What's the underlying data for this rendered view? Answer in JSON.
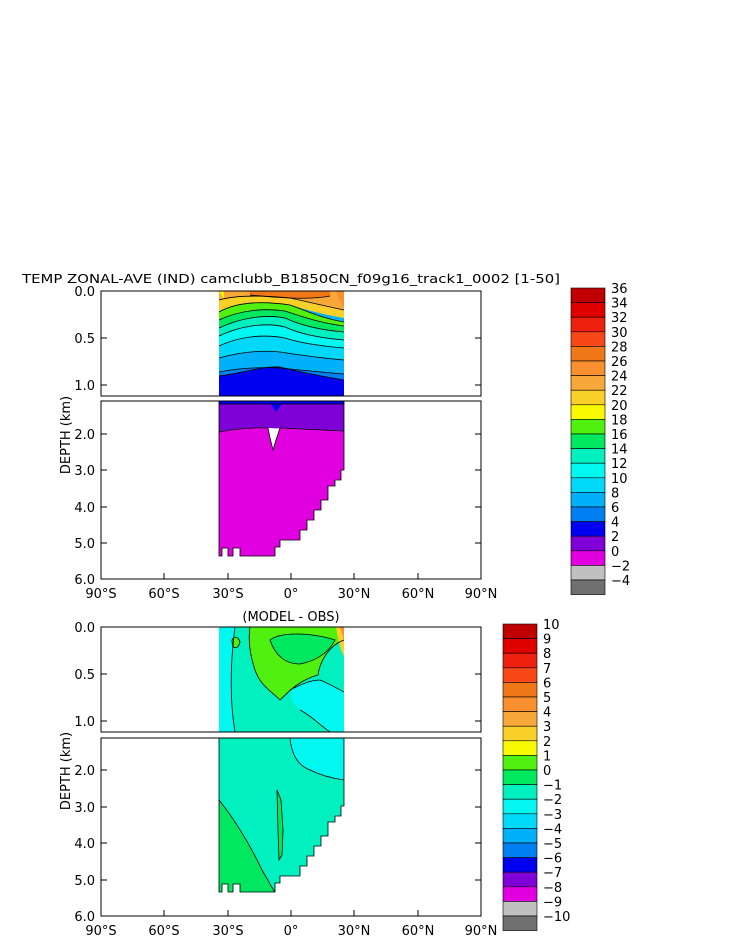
{
  "chart_data": [
    {
      "type": "heatmap",
      "title": "TEMP ZONAL-AVE (IND) camclubb_B1850CN_f09g16_track1_0002 [1-50]",
      "ylabel": "DEPTH (km)",
      "xlim": [
        -90,
        90
      ],
      "x_ticks": [
        "90°S",
        "60°S",
        "30°S",
        "0°",
        "30°N",
        "60°N",
        "90°N"
      ],
      "y_ticks_upper": [
        "0.0",
        "0.5",
        "1.0"
      ],
      "y_ticks_lower": [
        "2.0",
        "3.0",
        "4.0",
        "5.0",
        "6.0"
      ],
      "colorbar": {
        "labels": [
          "36",
          "34",
          "32",
          "30",
          "28",
          "26",
          "24",
          "22",
          "20",
          "18",
          "16",
          "14",
          "12",
          "10",
          "8",
          "6",
          "4",
          "2",
          "0",
          "−2",
          "−4"
        ],
        "colors": [
          "#c00000",
          "#e00000",
          "#f02010",
          "#f84818",
          "#f07818",
          "#f89030",
          "#f8a838",
          "#f8d028",
          "#f8f800",
          "#50f010",
          "#00e860",
          "#00f0c0",
          "#00f8f0",
          "#00d8f8",
          "#00b0f8",
          "#0080f0",
          "#0000f0",
          "#8000d8",
          "#e000e0",
          "#c0c0c0",
          "#707070"
        ]
      }
    },
    {
      "type": "heatmap",
      "title": "(MODEL - OBS)",
      "ylabel": "DEPTH (km)",
      "xlim": [
        -90,
        90
      ],
      "x_ticks": [
        "90°S",
        "60°S",
        "30°S",
        "0°",
        "30°N",
        "60°N",
        "90°N"
      ],
      "y_ticks_upper": [
        "0.0",
        "0.5",
        "1.0"
      ],
      "y_ticks_lower": [
        "2.0",
        "3.0",
        "4.0",
        "5.0",
        "6.0"
      ],
      "colorbar": {
        "labels": [
          "10",
          "9",
          "8",
          "7",
          "6",
          "5",
          "4",
          "3",
          "2",
          "1",
          "0",
          "−1",
          "−2",
          "−3",
          "−4",
          "−5",
          "−6",
          "−7",
          "−8",
          "−9",
          "−10"
        ],
        "colors": [
          "#c00000",
          "#e00000",
          "#f02010",
          "#f84818",
          "#f07818",
          "#f89030",
          "#f8a838",
          "#f8d028",
          "#f8f800",
          "#50f010",
          "#00e860",
          "#00f0c0",
          "#00f8f0",
          "#00d8f8",
          "#00b0f8",
          "#0080f0",
          "#0000f0",
          "#8000d8",
          "#e000e0",
          "#c0c0c0",
          "#707070"
        ]
      }
    }
  ]
}
